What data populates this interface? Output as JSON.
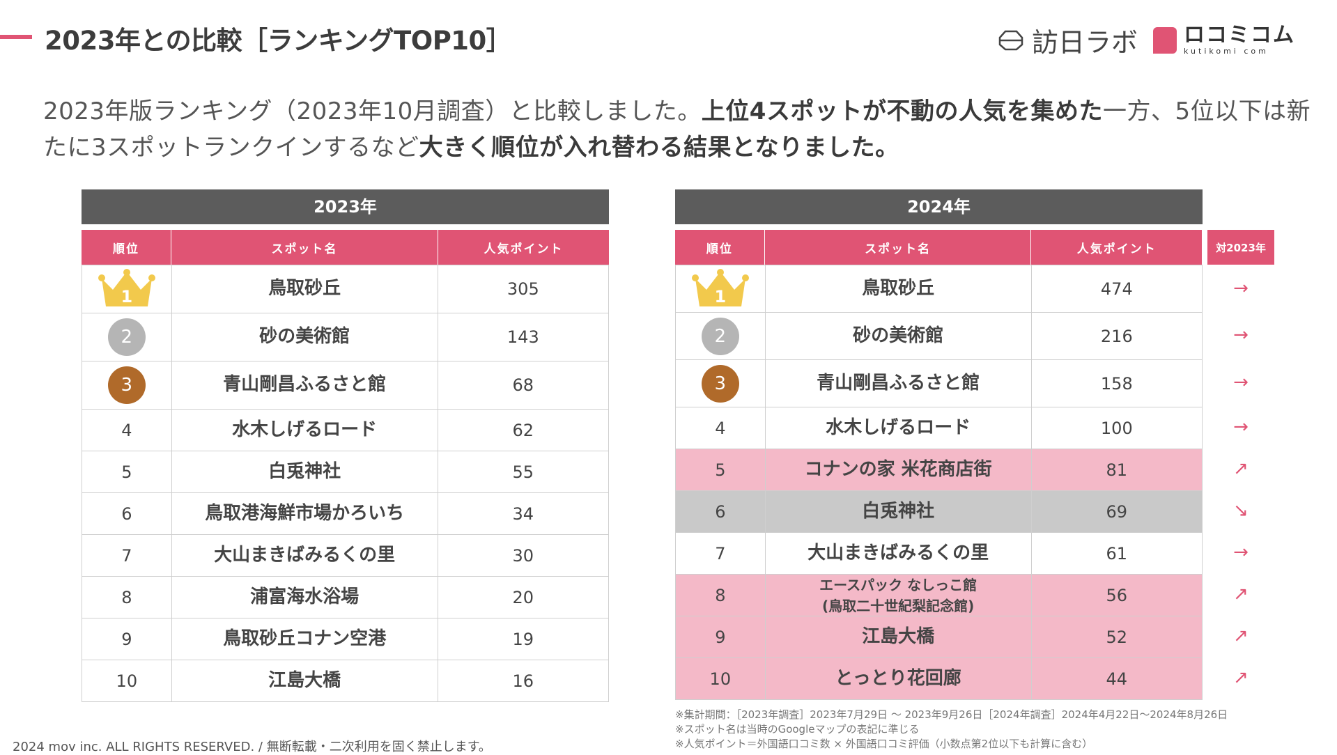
{
  "title": "2023年との比較［ランキングTOP10］",
  "logos": {
    "brand1": "訪日ラボ",
    "brand2_main": "ロコミコム",
    "brand2_sub": "kutikomi com"
  },
  "intro": {
    "p1": "2023年版ランキング（2023年10月調査）と比較しました。",
    "b1": "上位4スポットが不動の人気を集めた",
    "p2": "一方、5位以下は新たに3スポットランクインするなど",
    "b2": "大きく順位が入れ替わる結果となりました。"
  },
  "table2023": {
    "year": "2023年",
    "headers": {
      "rank": "順位",
      "name": "スポット名",
      "points": "人気ポイント"
    },
    "rows": [
      {
        "rank": "1",
        "name": "鳥取砂丘",
        "points": "305"
      },
      {
        "rank": "2",
        "name": "砂の美術館",
        "points": "143"
      },
      {
        "rank": "3",
        "name": "青山剛昌ふるさと館",
        "points": "68"
      },
      {
        "rank": "4",
        "name": "水木しげるロード",
        "points": "62"
      },
      {
        "rank": "5",
        "name": "白兎神社",
        "points": "55"
      },
      {
        "rank": "6",
        "name": "鳥取港海鮮市場かろいち",
        "points": "34"
      },
      {
        "rank": "7",
        "name": "大山まきばみるくの里",
        "points": "30"
      },
      {
        "rank": "8",
        "name": "浦富海水浴場",
        "points": "20"
      },
      {
        "rank": "9",
        "name": "鳥取砂丘コナン空港",
        "points": "19"
      },
      {
        "rank": "10",
        "name": "江島大橋",
        "points": "16"
      }
    ]
  },
  "table2024": {
    "year": "2024年",
    "headers": {
      "rank": "順位",
      "name": "スポット名",
      "points": "人気ポイント",
      "vs": "対2023年"
    },
    "rows": [
      {
        "rank": "1",
        "name": "鳥取砂丘",
        "points": "474",
        "vs": "→",
        "trend": "same"
      },
      {
        "rank": "2",
        "name": "砂の美術館",
        "points": "216",
        "vs": "→",
        "trend": "same"
      },
      {
        "rank": "3",
        "name": "青山剛昌ふるさと館",
        "points": "158",
        "vs": "→",
        "trend": "same"
      },
      {
        "rank": "4",
        "name": "水木しげるロード",
        "points": "100",
        "vs": "→",
        "trend": "same"
      },
      {
        "rank": "5",
        "name": "コナンの家 米花商店街",
        "points": "81",
        "vs": "↗",
        "trend": "up"
      },
      {
        "rank": "6",
        "name": "白兎神社",
        "points": "69",
        "vs": "↘",
        "trend": "down"
      },
      {
        "rank": "7",
        "name": "大山まきばみるくの里",
        "points": "61",
        "vs": "→",
        "trend": "same"
      },
      {
        "rank": "8",
        "name_line1": "エースパック なしっこ館",
        "name_line2": "(鳥取二十世紀梨記念館)",
        "points": "56",
        "vs": "↗",
        "trend": "up"
      },
      {
        "rank": "9",
        "name": "江島大橋",
        "points": "52",
        "vs": "↗",
        "trend": "up"
      },
      {
        "rank": "10",
        "name": "とっとり花回廊",
        "points": "44",
        "vs": "↗",
        "trend": "up"
      }
    ]
  },
  "notes": [
    "※集計期間：［2023年調査］2023年7月29日 〜 2023年9月26日［2024年調査］2024年4月22日〜2024年8月26日",
    "※スポット名は当時のGoogleマップの表記に準じる",
    "※人気ポイント＝外国語口コミ数 × 外国語口コミ評価（小数点第2位以下も計算に含む）"
  ],
  "copyright": "2024 mov inc. ALL RIGHTS RESERVED. / 無断転載・二次利用を固く禁止します。",
  "colors": {
    "accent": "#e05474",
    "header_dark": "#5c5c5c",
    "pink_row": "#f4b9c8",
    "gray_row": "#c9c9c9",
    "gold": "#f2c94c",
    "silver": "#b5b5b5",
    "bronze": "#b06a2a"
  }
}
